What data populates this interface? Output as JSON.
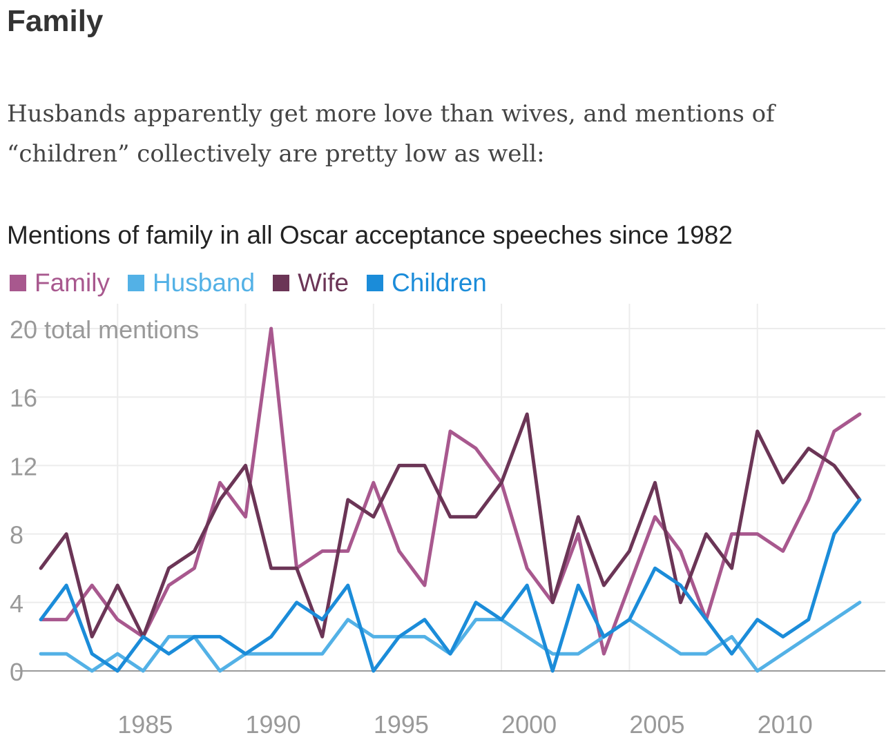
{
  "heading": "Family",
  "intro": "Husbands apparently get more love than wives, and mentions of “children” collectively are pretty low as well:",
  "chart_data": {
    "type": "line",
    "title": "Mentions of family in all Oscar acceptance speeches since 1982",
    "ylabel": "",
    "xlabel": "",
    "y_unit_label": "20 total mentions",
    "ylim": [
      0,
      20
    ],
    "y_ticks": [
      0,
      4,
      8,
      12,
      16,
      20
    ],
    "y_tick_labels": [
      "0",
      "4",
      "8",
      "12",
      "16",
      "20 total mentions"
    ],
    "xlim": [
      1981,
      2015
    ],
    "x_ticks": [
      1985,
      1990,
      1995,
      2000,
      2005,
      2010
    ],
    "x_tick_labels": [
      "1985",
      "1990",
      "1995",
      "2000",
      "2005",
      "2010"
    ],
    "grid": true,
    "legend_position": "top-left",
    "x": [
      1982,
      1983,
      1984,
      1985,
      1986,
      1987,
      1988,
      1989,
      1990,
      1991,
      1992,
      1993,
      1994,
      1995,
      1996,
      1997,
      1998,
      1999,
      2000,
      2001,
      2002,
      2003,
      2004,
      2005,
      2006,
      2007,
      2008,
      2009,
      2010,
      2011,
      2012,
      2013,
      2014
    ],
    "series": [
      {
        "name": "Family",
        "color": "#a8588e",
        "values": [
          3,
          3,
          5,
          3,
          2,
          5,
          6,
          11,
          9,
          20,
          6,
          7,
          7,
          11,
          7,
          5,
          14,
          13,
          11,
          6,
          4,
          8,
          1,
          5,
          9,
          7,
          3,
          8,
          8,
          7,
          10,
          14,
          15
        ]
      },
      {
        "name": "Husband",
        "color": "#53b1e6",
        "values": [
          1,
          1,
          0,
          1,
          0,
          2,
          2,
          0,
          1,
          1,
          1,
          1,
          3,
          2,
          2,
          2,
          1,
          3,
          3,
          2,
          1,
          1,
          2,
          3,
          2,
          1,
          1,
          2,
          0,
          1,
          2,
          3,
          4
        ]
      },
      {
        "name": "Wife",
        "color": "#6b3556",
        "values": [
          6,
          8,
          2,
          5,
          2,
          6,
          7,
          10,
          12,
          6,
          6,
          2,
          10,
          9,
          12,
          12,
          9,
          9,
          11,
          15,
          4,
          9,
          5,
          7,
          11,
          4,
          8,
          6,
          14,
          11,
          13,
          12,
          10
        ]
      },
      {
        "name": "Children",
        "color": "#1b8cd9",
        "values": [
          3,
          5,
          1,
          0,
          2,
          1,
          2,
          2,
          1,
          2,
          4,
          3,
          5,
          0,
          2,
          3,
          1,
          4,
          3,
          5,
          0,
          5,
          2,
          3,
          6,
          5,
          3,
          1,
          3,
          2,
          3,
          8,
          10
        ]
      }
    ]
  }
}
